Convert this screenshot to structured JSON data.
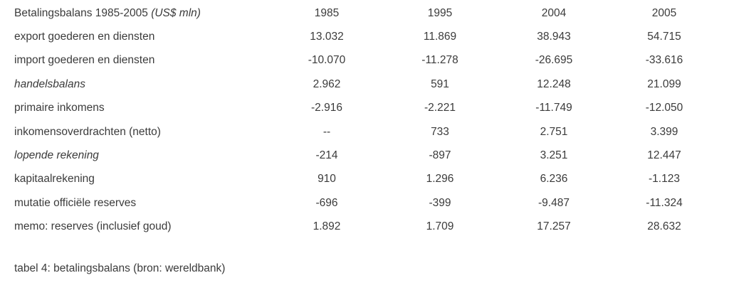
{
  "table": {
    "title": "Betalingsbalans 1985-2005",
    "title_unit": "(US$ mln)",
    "years": [
      "1985",
      "1995",
      "2004",
      "2005"
    ],
    "rows": [
      {
        "label": "export goederen en diensten",
        "values": [
          "13.032",
          "11.869",
          "38.943",
          "54.715"
        ]
      },
      {
        "label": "import goederen en diensten",
        "values": [
          "-10.070",
          "-11.278",
          "-26.695",
          "-33.616"
        ]
      },
      {
        "label": "handelsbalans",
        "values": [
          "2.962",
          "591",
          "12.248",
          "21.099"
        ]
      },
      {
        "label": "primaire inkomens",
        "values": [
          "-2.916",
          "-2.221",
          "-11.749",
          "-12.050"
        ]
      },
      {
        "label": "inkomensoverdrachten (netto)",
        "values": [
          "--",
          "733",
          "2.751",
          "3.399"
        ]
      },
      {
        "label": "lopende rekening",
        "values": [
          "-214",
          "-897",
          "3.251",
          "12.447"
        ]
      },
      {
        "label": "kapitaalrekening",
        "values": [
          "910",
          "1.296",
          "6.236",
          "-1.123"
        ]
      },
      {
        "label": "mutatie officiële reserves",
        "values": [
          "-696",
          "-399",
          "-9.487",
          "-11.324"
        ]
      },
      {
        "label": "memo: reserves (inclusief goud)",
        "values": [
          "1.892",
          "1.709",
          "17.257",
          "28.632"
        ]
      }
    ],
    "caption": "tabel 4: betalingsbalans (bron: wereldbank)"
  },
  "colors": {
    "text": "#3b3b3b",
    "background": "#ffffff"
  }
}
